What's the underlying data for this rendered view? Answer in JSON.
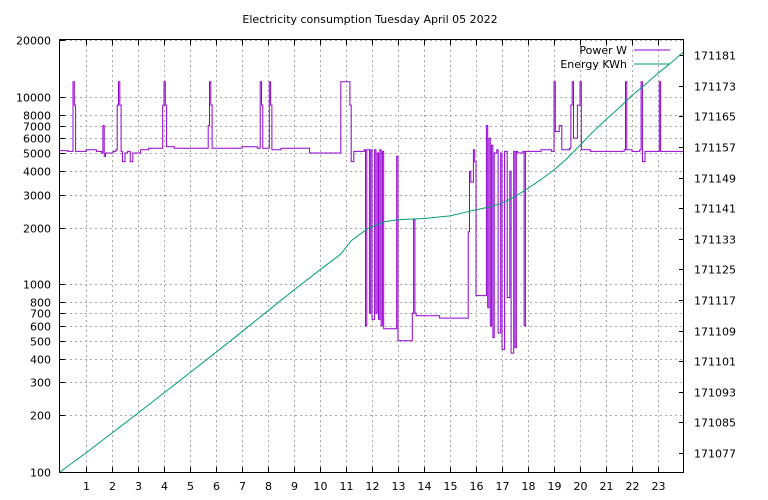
{
  "chart_data": {
    "type": "line",
    "title": "Electricity consumption Tuesday April 05 2022",
    "xlabel": "",
    "ylabel": "",
    "x_range": [
      0,
      24
    ],
    "x_ticks": [
      1,
      2,
      3,
      4,
      5,
      6,
      7,
      8,
      9,
      10,
      11,
      12,
      13,
      14,
      15,
      16,
      17,
      18,
      19,
      20,
      21,
      22,
      23
    ],
    "y_left": {
      "scale": "log",
      "range": [
        100,
        20000
      ],
      "ticks": [
        100,
        200,
        300,
        400,
        500,
        600,
        700,
        800,
        1000,
        2000,
        3000,
        4000,
        5000,
        6000,
        7000,
        8000,
        10000,
        20000
      ]
    },
    "y_right": {
      "scale": "linear",
      "range": [
        171072,
        171185
      ],
      "ticks": [
        171077,
        171085,
        171093,
        171101,
        171109,
        171117,
        171125,
        171133,
        171141,
        171149,
        171157,
        171165,
        171173,
        171181
      ]
    },
    "grid": true,
    "legend_position": "top-right",
    "colors": {
      "power": "#9400d3",
      "energy": "#009e73"
    },
    "series": [
      {
        "name": "Power W",
        "axis": "y_left",
        "points": [
          [
            0,
            5150
          ],
          [
            0.3,
            5100
          ],
          [
            0.45,
            5100
          ],
          [
            0.5,
            12000
          ],
          [
            0.55,
            9000
          ],
          [
            0.6,
            5100
          ],
          [
            0.9,
            5100
          ],
          [
            1.0,
            5200
          ],
          [
            1.4,
            5100
          ],
          [
            1.6,
            5000
          ],
          [
            1.65,
            7000
          ],
          [
            1.7,
            4800
          ],
          [
            1.75,
            5000
          ],
          [
            2.05,
            5100
          ],
          [
            2.15,
            5200
          ],
          [
            2.2,
            9000
          ],
          [
            2.25,
            12000
          ],
          [
            2.3,
            9000
          ],
          [
            2.35,
            5100
          ],
          [
            2.4,
            4500
          ],
          [
            2.5,
            5000
          ],
          [
            2.6,
            5100
          ],
          [
            2.7,
            4500
          ],
          [
            2.8,
            5000
          ],
          [
            3.1,
            5200
          ],
          [
            3.4,
            5300
          ],
          [
            3.7,
            5300
          ],
          [
            3.9,
            5300
          ],
          [
            3.95,
            9000
          ],
          [
            4.0,
            12000
          ],
          [
            4.05,
            9000
          ],
          [
            4.1,
            5400
          ],
          [
            4.4,
            5300
          ],
          [
            5.2,
            5300
          ],
          [
            5.6,
            5300
          ],
          [
            5.7,
            7000
          ],
          [
            5.75,
            12000
          ],
          [
            5.8,
            9000
          ],
          [
            5.85,
            5300
          ],
          [
            6.5,
            5300
          ],
          [
            7.0,
            5400
          ],
          [
            7.6,
            5300
          ],
          [
            7.7,
            12000
          ],
          [
            7.75,
            9000
          ],
          [
            7.8,
            5300
          ],
          [
            8.0,
            5300
          ],
          [
            8.05,
            12000
          ],
          [
            8.1,
            9000
          ],
          [
            8.15,
            5200
          ],
          [
            8.5,
            5300
          ],
          [
            9.0,
            5300
          ],
          [
            9.6,
            5000
          ],
          [
            10.5,
            5000
          ],
          [
            10.75,
            5000
          ],
          [
            10.8,
            12000
          ],
          [
            11.1,
            12000
          ],
          [
            11.15,
            9000
          ],
          [
            11.2,
            4500
          ],
          [
            11.3,
            5100
          ],
          [
            11.6,
            5100
          ],
          [
            11.7,
            5200
          ],
          [
            11.75,
            600
          ],
          [
            11.8,
            5200
          ],
          [
            11.9,
            700
          ],
          [
            11.95,
            5200
          ],
          [
            12.0,
            650
          ],
          [
            12.1,
            5200
          ],
          [
            12.15,
            700
          ],
          [
            12.2,
            5000
          ],
          [
            12.25,
            650
          ],
          [
            12.3,
            5200
          ],
          [
            12.35,
            600
          ],
          [
            12.4,
            5100
          ],
          [
            12.45,
            580
          ],
          [
            12.9,
            580
          ],
          [
            12.95,
            4800
          ],
          [
            13.0,
            500
          ],
          [
            13.5,
            500
          ],
          [
            13.55,
            700
          ],
          [
            13.6,
            2200
          ],
          [
            13.65,
            700
          ],
          [
            13.7,
            680
          ],
          [
            14.5,
            680
          ],
          [
            14.6,
            660
          ],
          [
            15.65,
            660
          ],
          [
            15.7,
            1900
          ],
          [
            15.75,
            4000
          ],
          [
            15.8,
            3500
          ],
          [
            15.9,
            5200
          ],
          [
            15.95,
            4500
          ],
          [
            16.0,
            870
          ],
          [
            16.3,
            870
          ],
          [
            16.4,
            7000
          ],
          [
            16.45,
            750
          ],
          [
            16.5,
            6000
          ],
          [
            16.55,
            600
          ],
          [
            16.6,
            5500
          ],
          [
            16.65,
            520
          ],
          [
            16.7,
            5000
          ],
          [
            16.8,
            5200
          ],
          [
            16.85,
            550
          ],
          [
            16.95,
            5000
          ],
          [
            17.0,
            450
          ],
          [
            17.1,
            5100
          ],
          [
            17.2,
            850
          ],
          [
            17.3,
            4000
          ],
          [
            17.35,
            430
          ],
          [
            17.45,
            5100
          ],
          [
            17.5,
            460
          ],
          [
            17.55,
            5100
          ],
          [
            17.6,
            5000
          ],
          [
            17.8,
            5100
          ],
          [
            17.85,
            600
          ],
          [
            17.9,
            5100
          ],
          [
            18.5,
            5200
          ],
          [
            18.9,
            5100
          ],
          [
            19.0,
            12000
          ],
          [
            19.05,
            6500
          ],
          [
            19.2,
            7000
          ],
          [
            19.3,
            5200
          ],
          [
            19.6,
            5300
          ],
          [
            19.65,
            9000
          ],
          [
            19.7,
            12000
          ],
          [
            19.75,
            6000
          ],
          [
            19.9,
            9000
          ],
          [
            20.0,
            12000
          ],
          [
            20.05,
            5200
          ],
          [
            20.4,
            5100
          ],
          [
            21.0,
            5100
          ],
          [
            21.7,
            5200
          ],
          [
            21.75,
            12000
          ],
          [
            21.8,
            5200
          ],
          [
            22.0,
            5100
          ],
          [
            22.3,
            5200
          ],
          [
            22.35,
            12000
          ],
          [
            22.4,
            4500
          ],
          [
            22.5,
            5100
          ],
          [
            23.0,
            5100
          ],
          [
            23.05,
            12000
          ],
          [
            23.1,
            5100
          ],
          [
            23.5,
            5100
          ],
          [
            24.0,
            5100
          ]
        ]
      },
      {
        "name": "Energy KWh",
        "axis": "y_right",
        "points": [
          [
            0,
            171072
          ],
          [
            0.5,
            171074.5
          ],
          [
            1,
            171077
          ],
          [
            2,
            171082.2
          ],
          [
            3,
            171087.4
          ],
          [
            4,
            171092.7
          ],
          [
            5,
            171098
          ],
          [
            6,
            171103.3
          ],
          [
            7,
            171108.7
          ],
          [
            8,
            171114.2
          ],
          [
            9,
            171119.6
          ],
          [
            10,
            171124.9
          ],
          [
            10.8,
            171129
          ],
          [
            11.2,
            171132.5
          ],
          [
            11.8,
            171135.5
          ],
          [
            12.5,
            171137.5
          ],
          [
            13,
            171138
          ],
          [
            14,
            171138.3
          ],
          [
            15,
            171139
          ],
          [
            15.5,
            171139.8
          ],
          [
            16,
            171140.6
          ],
          [
            16.5,
            171141.3
          ],
          [
            17,
            171142.3
          ],
          [
            17.5,
            171144
          ],
          [
            18,
            171146.2
          ],
          [
            18.5,
            171148.5
          ],
          [
            19,
            171151
          ],
          [
            19.5,
            171154
          ],
          [
            20,
            171157.5
          ],
          [
            20.5,
            171161
          ],
          [
            21,
            171164.2
          ],
          [
            21.5,
            171167.2
          ],
          [
            22,
            171170.5
          ],
          [
            22.5,
            171173.3
          ],
          [
            23,
            171176.3
          ],
          [
            23.5,
            171179
          ],
          [
            24,
            171182
          ]
        ]
      }
    ]
  }
}
